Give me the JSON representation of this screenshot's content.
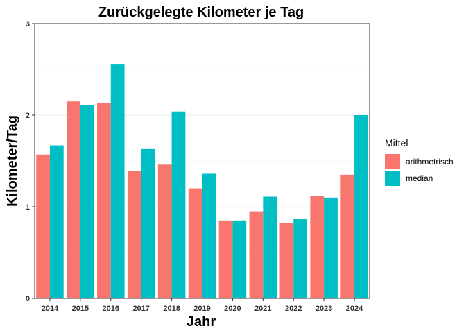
{
  "chart_data": {
    "type": "bar",
    "title": "Zurückgelegte Kilometer je Tag",
    "xlabel": "Jahr",
    "ylabel": "Kilometer/Tag",
    "categories": [
      "2014",
      "2015",
      "2016",
      "2017",
      "2018",
      "2019",
      "2020",
      "2021",
      "2022",
      "2023",
      "2024"
    ],
    "series": [
      {
        "name": "arithmetrisch",
        "color": "#F8766D",
        "values": [
          1.57,
          2.15,
          2.13,
          1.39,
          1.46,
          1.2,
          0.85,
          0.95,
          0.82,
          1.12,
          1.35
        ]
      },
      {
        "name": "median",
        "color": "#00BFC4",
        "values": [
          1.67,
          2.11,
          2.56,
          1.63,
          2.04,
          1.36,
          0.85,
          1.11,
          0.87,
          1.1,
          2.0
        ]
      }
    ],
    "ylim": [
      0,
      3
    ],
    "yticks": [
      0,
      1,
      2,
      3
    ],
    "grid": true,
    "legend": {
      "title": "Mittel",
      "position": "right"
    }
  }
}
